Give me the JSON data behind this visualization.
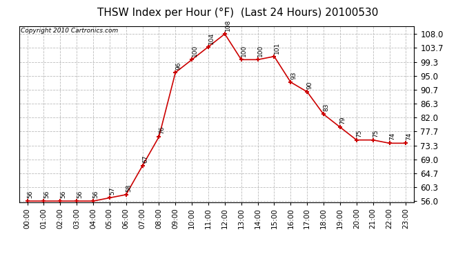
{
  "title": "THSW Index per Hour (°F)  (Last 24 Hours) 20100530",
  "copyright": "Copyright 2010 Cartronics.com",
  "hours": [
    "00:00",
    "01:00",
    "02:00",
    "03:00",
    "04:00",
    "05:00",
    "06:00",
    "07:00",
    "08:00",
    "09:00",
    "10:00",
    "11:00",
    "12:00",
    "13:00",
    "14:00",
    "15:00",
    "16:00",
    "17:00",
    "18:00",
    "19:00",
    "20:00",
    "21:00",
    "22:00",
    "23:00"
  ],
  "values": [
    56,
    56,
    56,
    56,
    56,
    57,
    58,
    67,
    76,
    96,
    100,
    104,
    108,
    100,
    100,
    101,
    93,
    90,
    83,
    79,
    75,
    75,
    74,
    74
  ],
  "ylim_min": 56.0,
  "ylim_max": 108.0,
  "yticks": [
    56.0,
    60.3,
    64.7,
    69.0,
    73.3,
    77.7,
    82.0,
    86.3,
    90.7,
    95.0,
    99.3,
    103.7,
    108.0
  ],
  "line_color": "#cc0000",
  "marker_color": "#cc0000",
  "bg_color": "#ffffff",
  "grid_color": "#bbbbbb",
  "title_fontsize": 11,
  "copyright_fontsize": 6.5,
  "label_fontsize": 6.5,
  "tick_fontsize": 7.5,
  "ytick_fontsize": 8.5
}
